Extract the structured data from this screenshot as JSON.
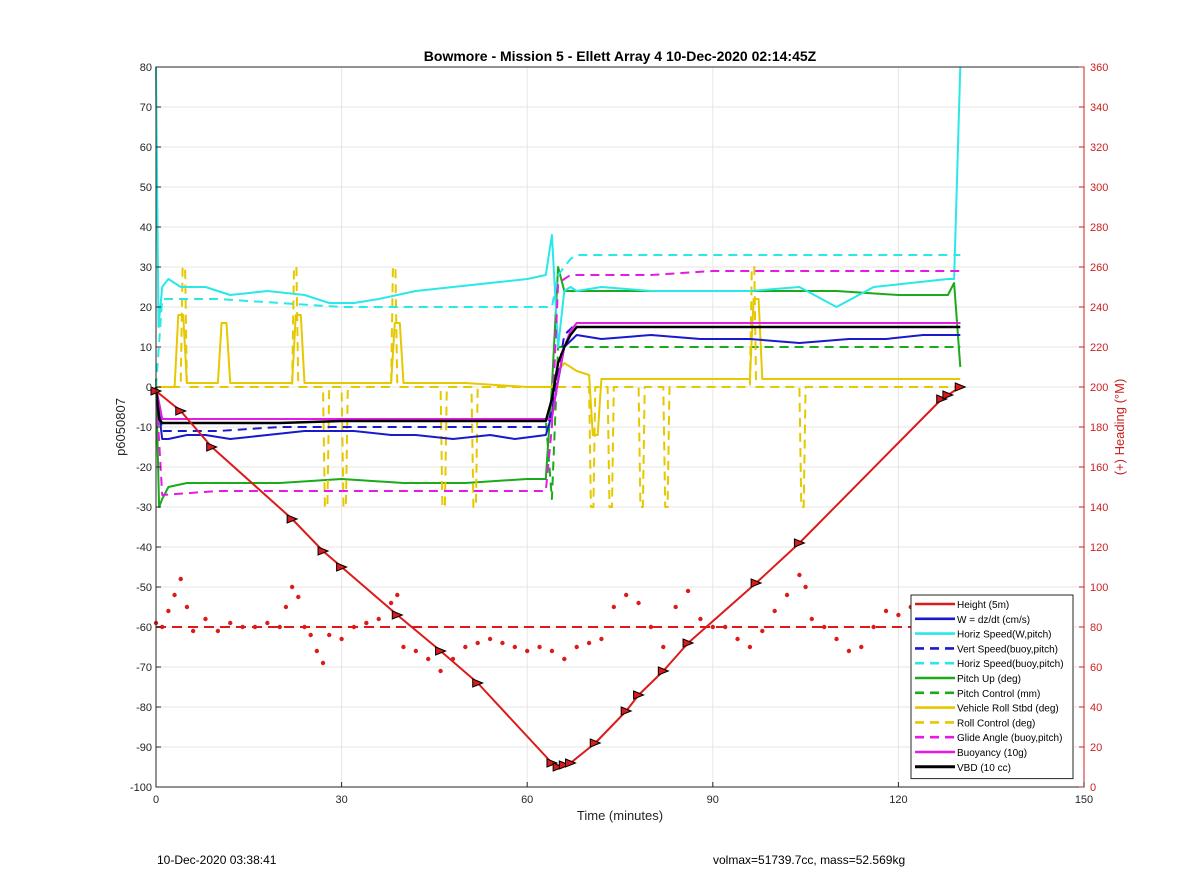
{
  "chart_data": {
    "type": "line",
    "title": "Bowmore - Mission 5 - Ellett Array 4 10-Dec-2020 02:14:45Z",
    "xlabel": "Time (minutes)",
    "ylabel_left": "p6050807",
    "ylabel_right": "(+) Heading (°M)",
    "xlim": [
      0,
      150
    ],
    "ylim_left": [
      -100,
      80
    ],
    "ylim_right": [
      0,
      360
    ],
    "x_ticks": [
      0,
      30,
      60,
      90,
      120,
      150
    ],
    "y_ticks_left": [
      -100,
      -90,
      -80,
      -70,
      -60,
      -50,
      -40,
      -30,
      -20,
      -10,
      0,
      10,
      20,
      30,
      40,
      50,
      60,
      70,
      80
    ],
    "y_ticks_right": [
      0,
      20,
      40,
      60,
      80,
      100,
      120,
      140,
      160,
      180,
      200,
      220,
      240,
      260,
      280,
      300,
      320,
      340,
      360
    ],
    "grid": true,
    "legend_position": "bottom-right",
    "colors": {
      "red": "#dd1a1a",
      "blue": "#1a1acc",
      "cyan": "#2ae8e8",
      "green": "#1aaa1a",
      "yellow": "#e6c800",
      "magenta": "#e61ae6",
      "black": "#000000",
      "right_axis": "#cc2020"
    },
    "series": [
      {
        "name": "Height (5m)",
        "color": "#dd1a1a",
        "dash": false,
        "width": 2,
        "x": [
          0,
          4,
          9,
          22,
          27,
          30,
          39,
          46,
          52,
          64,
          65,
          66,
          67,
          71,
          76,
          78,
          82,
          86,
          97,
          104,
          127,
          128,
          130
        ],
        "y": [
          -1,
          -6,
          -15,
          -33,
          -41,
          -45,
          -57,
          -66,
          -74,
          -94,
          -95,
          -94.5,
          -94,
          -89,
          -81,
          -77,
          -71,
          -64,
          -49,
          -39,
          -3,
          -2,
          0
        ],
        "markers": [
          0,
          4,
          9,
          22,
          27,
          30,
          39,
          46,
          52,
          64,
          65,
          66,
          67,
          71,
          76,
          78,
          82,
          86,
          97,
          104,
          127,
          128,
          130
        ]
      },
      {
        "name": "W = dz/dt (cm/s)",
        "color": "#1a1acc",
        "dash": false,
        "width": 2,
        "x": [
          0,
          1,
          2,
          5,
          8,
          12,
          18,
          24,
          28,
          32,
          38,
          42,
          48,
          54,
          58,
          63,
          64,
          66,
          68,
          72,
          80,
          88,
          96,
          104,
          112,
          118,
          124,
          128,
          130
        ],
        "y": [
          0,
          -13,
          -13,
          -12,
          -12,
          -13,
          -12,
          -11,
          -11,
          -11,
          -12,
          -12,
          -13,
          -12,
          -13,
          -12,
          -7,
          10,
          13,
          12,
          13,
          12,
          12,
          11,
          12,
          12,
          13,
          13,
          13
        ]
      },
      {
        "name": "Horiz Speed(W,pitch)",
        "color": "#2ae8e8",
        "dash": false,
        "width": 2,
        "x": [
          0,
          0.4,
          1,
          2,
          4,
          8,
          12,
          18,
          24,
          28,
          32,
          36,
          42,
          48,
          54,
          60,
          63,
          64,
          65,
          66,
          67,
          68,
          72,
          80,
          88,
          96,
          104,
          110,
          116,
          122,
          128,
          129,
          130
        ],
        "y": [
          80,
          15,
          25,
          27,
          25,
          25,
          23,
          24,
          23,
          21,
          21,
          22,
          24,
          25,
          26,
          27,
          28,
          38,
          10,
          24,
          25,
          24,
          25,
          24,
          24,
          24,
          25,
          20,
          25,
          26,
          27,
          27,
          80
        ]
      },
      {
        "name": "Vert Speed(buoy,pitch)",
        "color": "#1a1acc",
        "dash": true,
        "width": 2,
        "x": [
          0,
          1,
          2,
          10,
          20,
          30,
          40,
          50,
          60,
          63,
          64,
          66,
          68,
          80,
          90,
          100,
          110,
          120,
          130
        ],
        "y": [
          0,
          -11,
          -11,
          -11,
          -10,
          -10,
          -10,
          -10,
          -10,
          -10,
          -6,
          13,
          16,
          16,
          16,
          16,
          16,
          16,
          16
        ]
      },
      {
        "name": "Horiz Speed(buoy,pitch)",
        "color": "#2ae8e8",
        "dash": true,
        "width": 2,
        "x": [
          0,
          1,
          10,
          20,
          30,
          40,
          50,
          60,
          64,
          65,
          67,
          68,
          80,
          90,
          100,
          110,
          120,
          130
        ],
        "y": [
          0,
          22,
          22,
          21,
          20,
          20,
          20,
          20,
          20,
          28,
          32,
          33,
          33,
          33,
          33,
          33,
          33,
          33
        ]
      },
      {
        "name": "Pitch Up (deg)",
        "color": "#1aaa1a",
        "dash": false,
        "width": 2,
        "x": [
          0,
          0.5,
          1,
          2,
          5,
          10,
          20,
          30,
          40,
          50,
          60,
          63,
          64,
          65,
          66,
          68,
          80,
          90,
          100,
          110,
          120,
          128,
          129,
          130
        ],
        "y": [
          2,
          -30,
          -28,
          -25,
          -24,
          -24,
          -24,
          -23,
          -24,
          -24,
          -23,
          -23,
          0,
          30,
          24,
          24,
          24,
          24,
          24,
          24,
          23,
          23,
          26,
          5
        ]
      },
      {
        "name": "Pitch Control (mm)",
        "color": "#1aaa1a",
        "dash": true,
        "width": 2,
        "x": [
          0,
          1,
          10,
          20,
          30,
          40,
          50,
          60,
          63,
          64,
          65,
          66,
          70,
          80,
          90,
          100,
          110,
          120,
          130
        ],
        "y": [
          0,
          -8,
          -8,
          -8,
          -8,
          -8,
          -8,
          -8,
          -8,
          -28,
          10,
          10,
          10,
          10,
          10,
          10,
          10,
          10,
          10
        ]
      },
      {
        "name": "Vehicle Roll Stbd (deg)",
        "color": "#e6c800",
        "dash": false,
        "width": 2,
        "x": [
          0,
          3,
          3.6,
          4,
          4.4,
          5,
          10,
          10.6,
          11,
          11.4,
          12,
          22,
          22.6,
          23,
          23.4,
          24,
          30,
          38,
          38.6,
          39,
          39.4,
          40,
          45,
          50,
          60,
          64,
          65,
          66,
          68,
          70,
          70.6,
          71,
          71.4,
          72,
          80,
          90,
          96,
          96.6,
          97,
          97.4,
          98,
          110,
          120,
          130
        ],
        "y": [
          0,
          0,
          18,
          18,
          18,
          1,
          1,
          16,
          16,
          16,
          1,
          1,
          18,
          18,
          18,
          1,
          1,
          1,
          16,
          16,
          16,
          1,
          1,
          1,
          0,
          0,
          4,
          6,
          4,
          3,
          -12,
          -12,
          -12,
          2,
          2,
          2,
          2,
          22,
          22,
          22,
          2,
          2,
          2,
          2
        ]
      },
      {
        "name": "Roll Control (deg)",
        "color": "#e6c800",
        "dash": true,
        "width": 2,
        "x": [
          0,
          4,
          4.3,
          4.7,
          5,
          22,
          22.3,
          22.7,
          23,
          27,
          27.3,
          27.7,
          28,
          30,
          30.3,
          30.7,
          31,
          38,
          38.3,
          38.7,
          39,
          46,
          46.3,
          46.7,
          47,
          51,
          51.3,
          51.7,
          52,
          64,
          65,
          67,
          70,
          70.3,
          70.7,
          71,
          73,
          73.3,
          73.7,
          74,
          78,
          78.3,
          78.7,
          79,
          82,
          82.3,
          82.7,
          83,
          96,
          96.3,
          96.7,
          97,
          104,
          104.3,
          104.7,
          105,
          130
        ],
        "y": [
          0,
          0,
          30,
          30,
          0,
          0,
          30,
          30,
          0,
          0,
          -30,
          -30,
          0,
          0,
          -30,
          -30,
          0,
          0,
          30,
          30,
          0,
          0,
          -30,
          -30,
          0,
          0,
          -30,
          -30,
          0,
          0,
          0,
          0,
          0,
          -30,
          -30,
          0,
          0,
          -30,
          -30,
          0,
          0,
          -30,
          -30,
          0,
          0,
          -30,
          -30,
          0,
          0,
          30,
          30,
          0,
          0,
          -30,
          -30,
          0,
          0
        ]
      },
      {
        "name": "Glide Angle (buoy,pitch)",
        "color": "#e61ae6",
        "dash": true,
        "width": 2,
        "x": [
          0,
          1,
          10,
          20,
          30,
          40,
          50,
          60,
          63,
          64,
          65,
          67,
          70,
          80,
          90,
          100,
          110,
          120,
          130
        ],
        "y": [
          0,
          -27,
          -26,
          -26,
          -26,
          -26,
          -26,
          -26,
          -26,
          -10,
          26,
          28,
          28,
          28,
          29,
          29,
          29,
          29,
          29
        ]
      },
      {
        "name": "Buoyancy (10g)",
        "color": "#e61ae6",
        "dash": false,
        "width": 2,
        "x": [
          0,
          1,
          10,
          20,
          30,
          40,
          50,
          60,
          64,
          65,
          66,
          67,
          68,
          80,
          90,
          100,
          110,
          120,
          130
        ],
        "y": [
          0,
          -8,
          -8,
          -8,
          -8,
          -8,
          -8,
          -8,
          -8,
          2,
          10,
          14,
          16,
          16,
          16,
          16,
          16,
          16,
          16
        ]
      },
      {
        "name": "VBD (10 cc)",
        "color": "#000000",
        "dash": false,
        "width": 2.4,
        "x": [
          0,
          0.5,
          1,
          10,
          20,
          30,
          40,
          50,
          60,
          63,
          64,
          65,
          66,
          67,
          68,
          80,
          90,
          100,
          110,
          120,
          130
        ],
        "y": [
          0,
          -8,
          -9,
          -9,
          -9,
          -8.5,
          -8.5,
          -8.5,
          -8.5,
          -8.5,
          -3,
          6,
          10,
          13,
          15,
          15,
          15,
          15,
          15,
          15,
          15
        ]
      }
    ],
    "heading_points": {
      "name": "Heading",
      "color": "#dd1a1a",
      "axis": "right",
      "x": [
        0,
        1,
        2,
        3,
        4,
        5,
        6,
        8,
        10,
        12,
        14,
        16,
        18,
        20,
        21,
        22,
        23,
        24,
        25,
        26,
        27,
        28,
        30,
        32,
        34,
        36,
        38,
        39,
        40,
        42,
        44,
        46,
        48,
        50,
        52,
        54,
        56,
        58,
        60,
        62,
        64,
        66,
        68,
        70,
        72,
        74,
        76,
        78,
        80,
        82,
        84,
        86,
        88,
        90,
        92,
        94,
        96,
        98,
        100,
        102,
        104,
        105,
        106,
        108,
        110,
        112,
        114,
        116,
        118,
        120,
        122,
        124,
        126,
        128,
        129
      ],
      "y": [
        82,
        80,
        88,
        96,
        104,
        90,
        78,
        84,
        78,
        82,
        80,
        80,
        82,
        80,
        90,
        100,
        95,
        80,
        76,
        68,
        62,
        76,
        74,
        80,
        82,
        84,
        92,
        96,
        70,
        68,
        64,
        58,
        64,
        70,
        72,
        74,
        72,
        70,
        68,
        70,
        68,
        64,
        70,
        72,
        74,
        90,
        96,
        92,
        80,
        70,
        90,
        98,
        84,
        80,
        80,
        74,
        70,
        78,
        88,
        96,
        106,
        100,
        84,
        80,
        74,
        68,
        70,
        80,
        88,
        86,
        90,
        90,
        92,
        84,
        78
      ]
    },
    "heading_reference": {
      "color": "#dd1a1a",
      "value": 80,
      "axis": "right",
      "dash": true
    }
  },
  "footer": {
    "left_text": "10-Dec-2020 03:38:41",
    "right_text": "volmax=51739.7cc, mass=52.569kg"
  }
}
